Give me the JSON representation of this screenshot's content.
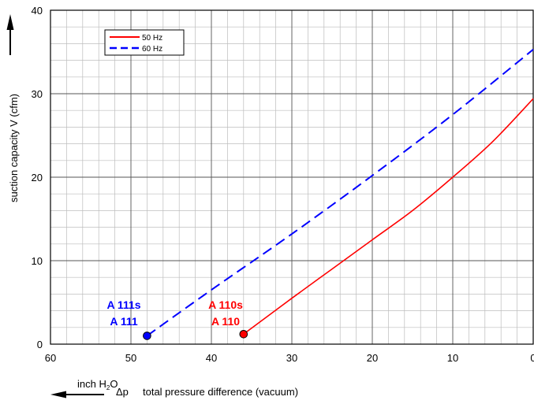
{
  "chart_data": {
    "type": "line",
    "ylabel": "suction capacity V (cfm)",
    "xlabel": "total pressure difference (vacuum)",
    "xlabel_symbol": "Δp",
    "x_unit": "inch H2O",
    "x_unit_prefix": "inch H",
    "x_unit_sub": "2",
    "x_unit_suffix": "O",
    "xlim": [
      60,
      0
    ],
    "ylim": [
      0,
      40
    ],
    "x_ticks": [
      60,
      50,
      40,
      30,
      20,
      10,
      0
    ],
    "y_ticks": [
      0,
      10,
      20,
      30,
      40
    ],
    "grid": true,
    "legend_position": "top-left",
    "series": [
      {
        "name": "50 Hz",
        "color": "#ff0000",
        "dash": "solid",
        "x": [
          36,
          30,
          25,
          20,
          15,
          10,
          5,
          0
        ],
        "y": [
          1.2,
          5.5,
          9,
          12.5,
          16,
          20,
          24.3,
          29.4
        ]
      },
      {
        "name": "60 Hz",
        "color": "#0000ff",
        "dash": "dashed",
        "x": [
          48,
          40,
          30,
          20,
          10,
          0
        ],
        "y": [
          1.0,
          6.5,
          13.2,
          20.2,
          27.5,
          35.3
        ]
      }
    ],
    "points": [
      {
        "x": 48,
        "y": 1.0,
        "color": "#0000ff"
      },
      {
        "x": 36,
        "y": 1.2,
        "color": "#ff0000"
      }
    ],
    "annotations": [
      {
        "lines": [
          "A 111s",
          "A 111"
        ],
        "color": "#0000ff"
      },
      {
        "lines": [
          "A 110s",
          "A 110"
        ],
        "color": "#ff0000"
      }
    ]
  }
}
